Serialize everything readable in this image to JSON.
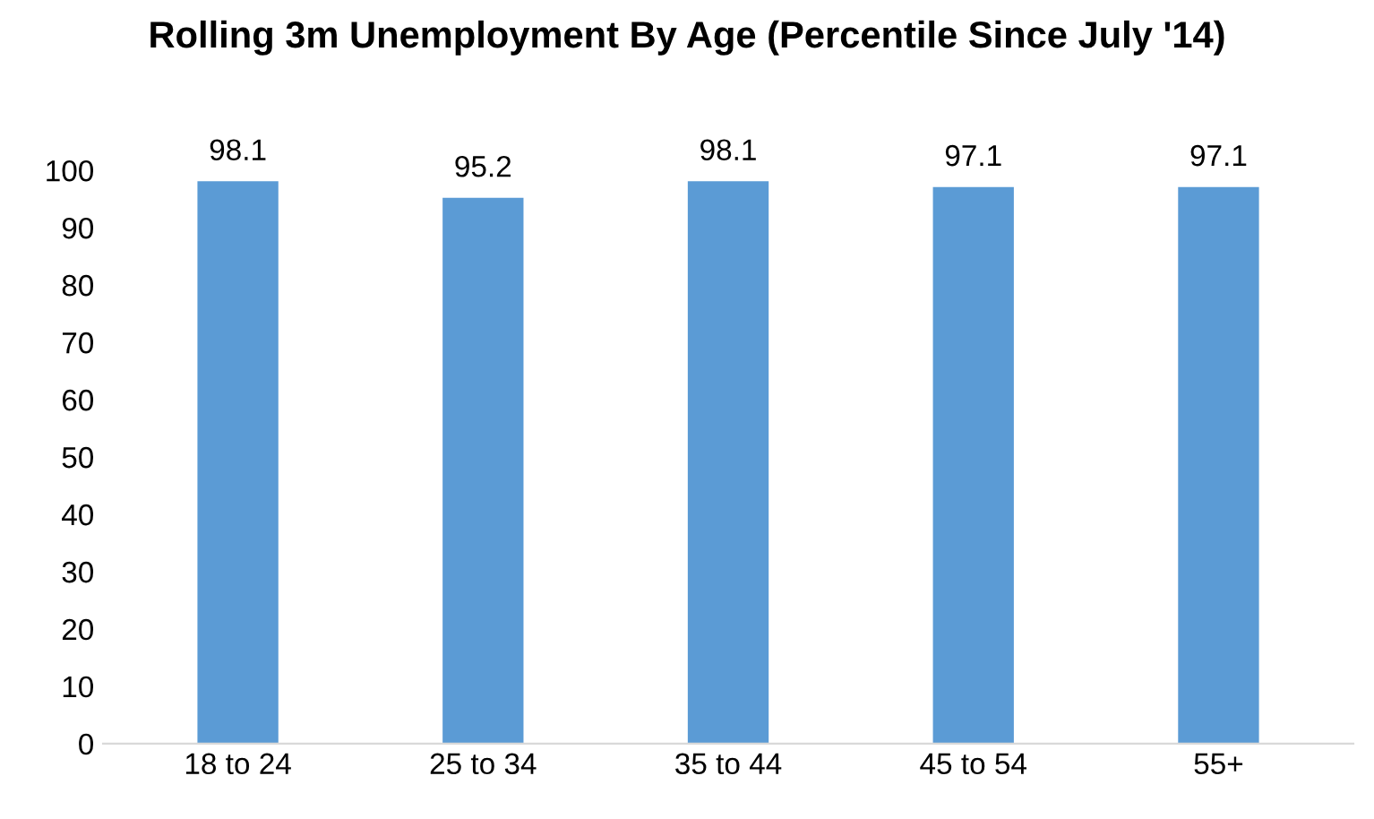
{
  "chart_data": {
    "type": "bar",
    "title": "Rolling 3m Unemployment By Age (Percentile Since July '14)",
    "categories": [
      "18 to 24",
      "25 to 34",
      "35 to 44",
      "45 to 54",
      "55+"
    ],
    "values": [
      98.1,
      95.2,
      98.1,
      97.1,
      97.1
    ],
    "color": "#5b9bd5",
    "ylim": [
      0,
      100
    ],
    "yticks": [
      0,
      10,
      20,
      30,
      40,
      50,
      60,
      70,
      80,
      90,
      100
    ],
    "grid": false,
    "data_labels": true
  }
}
